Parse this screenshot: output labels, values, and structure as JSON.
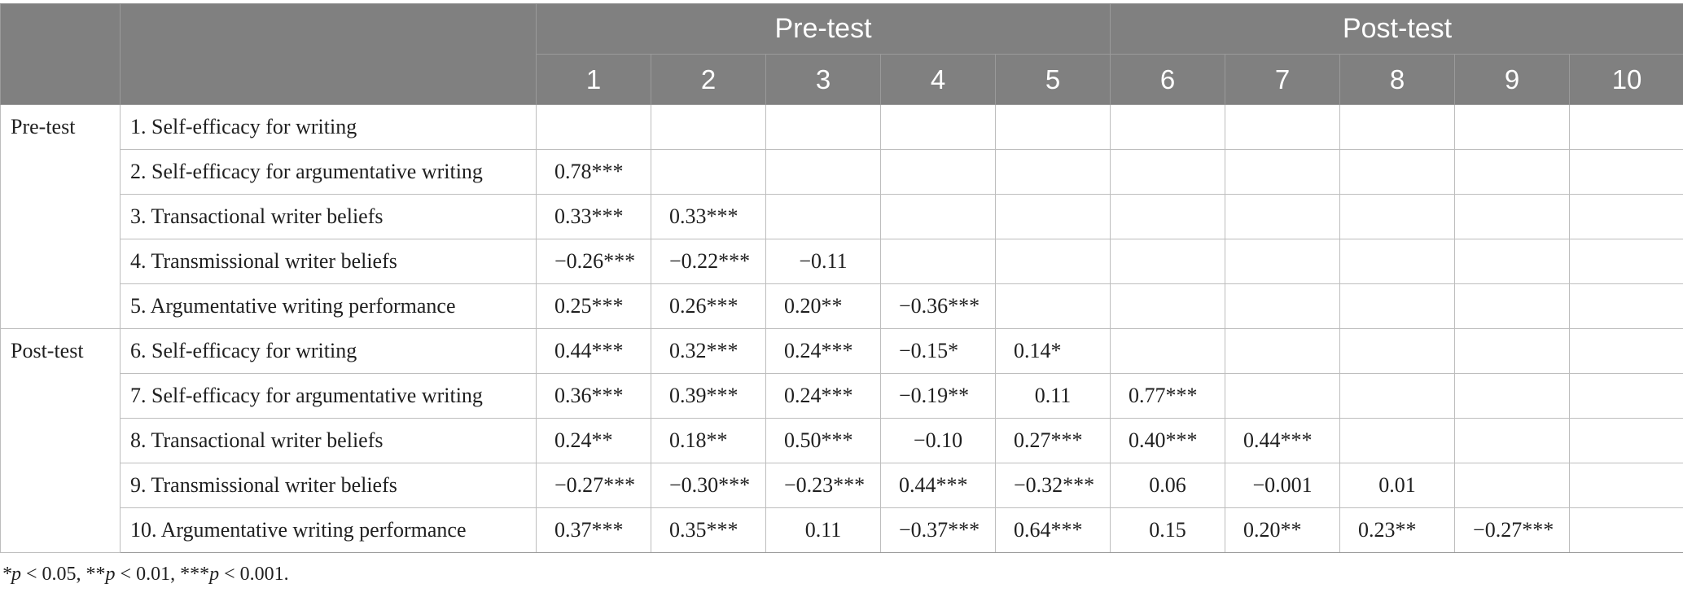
{
  "header": {
    "pretest_group": "Pre-test",
    "posttest_group": "Post-test",
    "columns": [
      "1",
      "2",
      "3",
      "4",
      "5",
      "6",
      "7",
      "8",
      "9",
      "10"
    ]
  },
  "groups": {
    "pretest": "Pre-test",
    "posttest": "Post-test"
  },
  "rows": [
    {
      "label": "1. Self-efficacy for writing",
      "values": [
        "",
        "",
        "",
        "",
        "",
        "",
        "",
        "",
        "",
        ""
      ]
    },
    {
      "label": "2. Self-efficacy for argumentative writing",
      "values": [
        "0.78***",
        "",
        "",
        "",
        "",
        "",
        "",
        "",
        "",
        ""
      ]
    },
    {
      "label": "3. Transactional writer beliefs",
      "values": [
        "0.33***",
        "0.33***",
        "",
        "",
        "",
        "",
        "",
        "",
        "",
        ""
      ]
    },
    {
      "label": "4. Transmissional writer beliefs",
      "values": [
        "−0.26***",
        "−0.22***",
        "−0.11",
        "",
        "",
        "",
        "",
        "",
        "",
        ""
      ]
    },
    {
      "label": "5. Argumentative writing performance",
      "values": [
        "0.25***",
        "0.26***",
        "0.20**",
        "−0.36***",
        "",
        "",
        "",
        "",
        "",
        ""
      ]
    },
    {
      "label": "6. Self-efficacy for writing",
      "values": [
        "0.44***",
        "0.32***",
        "0.24***",
        "−0.15*",
        "0.14*",
        "",
        "",
        "",
        "",
        ""
      ]
    },
    {
      "label": "7. Self-efficacy for argumentative writing",
      "values": [
        "0.36***",
        "0.39***",
        "0.24***",
        "−0.19**",
        "0.11",
        "0.77***",
        "",
        "",
        "",
        ""
      ]
    },
    {
      "label": "8. Transactional writer beliefs",
      "values": [
        "0.24**",
        "0.18**",
        "0.50***",
        "−0.10",
        "0.27***",
        "0.40***",
        "0.44***",
        "",
        "",
        ""
      ]
    },
    {
      "label": "9. Transmissional writer beliefs",
      "values": [
        "−0.27***",
        "−0.30***",
        "−0.23***",
        "0.44***",
        "−0.32***",
        "0.06",
        "−0.001",
        "0.01",
        "",
        ""
      ]
    },
    {
      "label": "10. Argumentative writing performance",
      "values": [
        "0.37***",
        "0.35***",
        "0.11",
        "−0.37***",
        "0.64***",
        "0.15",
        "0.20**",
        "0.23**",
        "−0.27***",
        ""
      ]
    }
  ],
  "footnote": "*p < 0.05, **p < 0.01, ***p < 0.001."
}
